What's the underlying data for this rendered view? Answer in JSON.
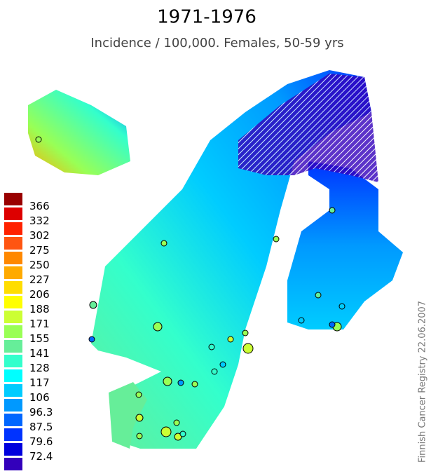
{
  "header": {
    "title": "1971-1976",
    "subtitle": "Incidence / 100,000. Females, 50-59 yrs"
  },
  "legend": {
    "labels": [
      "366",
      "332",
      "302",
      "275",
      "250",
      "227",
      "206",
      "188",
      "171",
      "155",
      "141",
      "128",
      "117",
      "106",
      "96.3",
      "87.5",
      "79.6",
      "72.4"
    ],
    "colors": [
      "#990000",
      "#dd0000",
      "#ff2200",
      "#ff5511",
      "#ff8800",
      "#ffaa00",
      "#ffdd00",
      "#ffff00",
      "#ccff33",
      "#99ff55",
      "#66ee99",
      "#33ffcc",
      "#00ffff",
      "#00ccff",
      "#0099ff",
      "#0066ff",
      "#0033ff",
      "#0000dd",
      "#3300bb"
    ]
  },
  "credit": "Finnish Cancer Registry 22.06.2007"
}
